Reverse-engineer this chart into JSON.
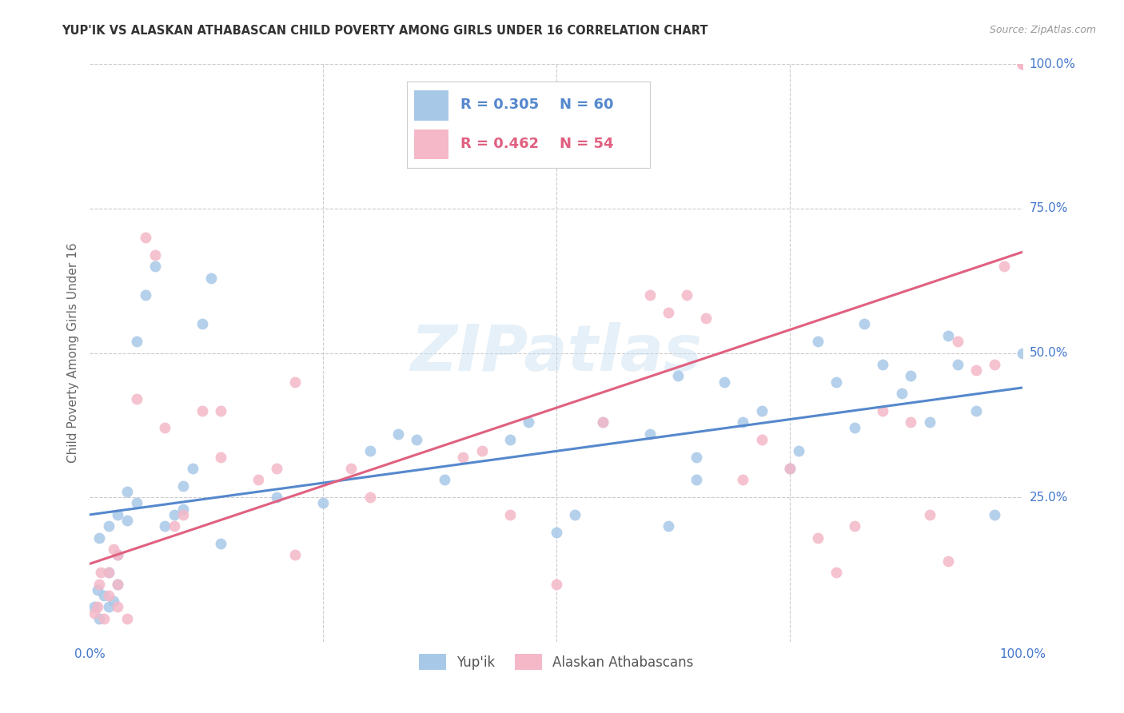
{
  "title": "YUP'IK VS ALASKAN ATHABASCAN CHILD POVERTY AMONG GIRLS UNDER 16 CORRELATION CHART",
  "source": "Source: ZipAtlas.com",
  "ylabel": "Child Poverty Among Girls Under 16",
  "xlim": [
    0,
    1.0
  ],
  "ylim": [
    0,
    1.0
  ],
  "background_color": "#ffffff",
  "watermark_text": "ZIPatlas",
  "blue_color": "#a8c8e8",
  "pink_color": "#f4b8c8",
  "blue_line_color": "#5588cc",
  "pink_line_color": "#e06080",
  "blue_label": "Yup'ik",
  "pink_label": "Alaskan Athabascans",
  "blue_r": 0.305,
  "blue_n": 60,
  "pink_r": 0.462,
  "pink_n": 54,
  "blue_intercept": 0.22,
  "blue_slope": 0.22,
  "pink_intercept": 0.135,
  "pink_slope": 0.54,
  "grid_color": "#cccccc",
  "title_color": "#333333",
  "source_color": "#999999",
  "tick_label_color": "#4477cc",
  "ylabel_color": "#666666",
  "blue_points_x": [
    0.005,
    0.008,
    0.01,
    0.01,
    0.015,
    0.02,
    0.02,
    0.02,
    0.025,
    0.03,
    0.03,
    0.03,
    0.04,
    0.04,
    0.05,
    0.05,
    0.06,
    0.07,
    0.08,
    0.09,
    0.1,
    0.1,
    0.11,
    0.12,
    0.13,
    0.14,
    0.2,
    0.25,
    0.3,
    0.33,
    0.35,
    0.38,
    0.45,
    0.47,
    0.5,
    0.52,
    0.55,
    0.6,
    0.62,
    0.63,
    0.65,
    0.65,
    0.68,
    0.7,
    0.72,
    0.75,
    0.76,
    0.78,
    0.8,
    0.82,
    0.83,
    0.85,
    0.87,
    0.88,
    0.9,
    0.92,
    0.93,
    0.95,
    0.97,
    1.0
  ],
  "blue_points_y": [
    0.06,
    0.09,
    0.04,
    0.18,
    0.08,
    0.06,
    0.12,
    0.2,
    0.07,
    0.1,
    0.15,
    0.22,
    0.21,
    0.26,
    0.24,
    0.52,
    0.6,
    0.65,
    0.2,
    0.22,
    0.23,
    0.27,
    0.3,
    0.55,
    0.63,
    0.17,
    0.25,
    0.24,
    0.33,
    0.36,
    0.35,
    0.28,
    0.35,
    0.38,
    0.19,
    0.22,
    0.38,
    0.36,
    0.2,
    0.46,
    0.28,
    0.32,
    0.45,
    0.38,
    0.4,
    0.3,
    0.33,
    0.52,
    0.45,
    0.37,
    0.55,
    0.48,
    0.43,
    0.46,
    0.38,
    0.53,
    0.48,
    0.4,
    0.22,
    0.5
  ],
  "pink_points_x": [
    0.005,
    0.008,
    0.01,
    0.012,
    0.015,
    0.02,
    0.02,
    0.025,
    0.03,
    0.03,
    0.03,
    0.04,
    0.05,
    0.06,
    0.07,
    0.08,
    0.09,
    0.1,
    0.12,
    0.14,
    0.14,
    0.18,
    0.2,
    0.22,
    0.22,
    0.28,
    0.3,
    0.4,
    0.42,
    0.45,
    0.5,
    0.55,
    0.6,
    0.62,
    0.64,
    0.66,
    0.7,
    0.72,
    0.75,
    0.78,
    0.8,
    0.82,
    0.85,
    0.88,
    0.9,
    0.92,
    0.93,
    0.95,
    0.97,
    0.98,
    1.0,
    1.0,
    1.0,
    1.0
  ],
  "pink_points_y": [
    0.05,
    0.06,
    0.1,
    0.12,
    0.04,
    0.08,
    0.12,
    0.16,
    0.06,
    0.1,
    0.15,
    0.04,
    0.42,
    0.7,
    0.67,
    0.37,
    0.2,
    0.22,
    0.4,
    0.32,
    0.4,
    0.28,
    0.3,
    0.45,
    0.15,
    0.3,
    0.25,
    0.32,
    0.33,
    0.22,
    0.1,
    0.38,
    0.6,
    0.57,
    0.6,
    0.56,
    0.28,
    0.35,
    0.3,
    0.18,
    0.12,
    0.2,
    0.4,
    0.38,
    0.22,
    0.14,
    0.52,
    0.47,
    0.48,
    0.65,
    1.0,
    1.0,
    1.0,
    1.0
  ]
}
